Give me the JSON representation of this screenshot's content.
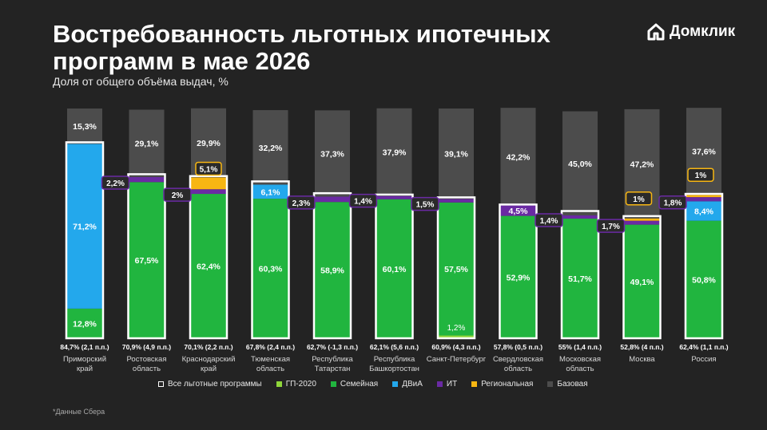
{
  "title": "Востребованность льготных ипотечных программ в мае 2026",
  "subtitle": "Доля от общего объёма выдач, %",
  "logo": {
    "text": "Домклик"
  },
  "footnote": "*Данные Сбера",
  "colors": {
    "gp2020": "#8fd63a",
    "family": "#21b53f",
    "dvia": "#23a8ec",
    "it": "#6a2aa3",
    "regional": "#f7b612",
    "base": "#4c4c4c",
    "outline": "#ffffff"
  },
  "chart_data": {
    "type": "bar",
    "stacked": true,
    "ylim": [
      0,
      100
    ],
    "categories": [
      "Приморский край",
      "Ростовская область",
      "Краснодарский край",
      "Тюменская область",
      "Республика Татарстан",
      "Республика Башкортостан",
      "Санкт-Петербург",
      "Свердловская область",
      "Московская область",
      "Москва",
      "Россия"
    ],
    "totals": [
      "84,7% (2,1 п.п.)",
      "70,9% (4,9 п.п.)",
      "70,1% (2,2 п.п.)",
      "67,8% (2,4 п.п.)",
      "62,7% (-1,3 п.п.)",
      "62,1% (5,6 п.п.)",
      "60,9% (4,3 п.п.)",
      "57,8% (0,5 п.п.)",
      "55% (1,4 п.п.)",
      "52,8% (4 п.п.)",
      "62,4% (1,1 п.п.)"
    ],
    "legend": [
      "Все льготные программы",
      "ГП-2020",
      "Семейная",
      "ДВиА",
      "ИТ",
      "Региональная",
      "Базовая"
    ],
    "series": [
      {
        "name": "ГП-2020",
        "key": "gp2020",
        "values": [
          0,
          0,
          0,
          0,
          0,
          0,
          1.2,
          0,
          0,
          0,
          0
        ],
        "labels": [
          "",
          "",
          "",
          "",
          "",
          "",
          "1,2%",
          "",
          "",
          "",
          ""
        ]
      },
      {
        "name": "Семейная",
        "key": "family",
        "values": [
          12.8,
          67.5,
          62.4,
          60.3,
          58.9,
          60.1,
          57.5,
          52.9,
          51.7,
          49.1,
          50.8
        ],
        "labels": [
          "12,8%",
          "67,5%",
          "62,4%",
          "60,3%",
          "58,9%",
          "60,1%",
          "57,5%",
          "52,9%",
          "51,7%",
          "49,1%",
          "50,8%"
        ]
      },
      {
        "name": "ДВиА",
        "key": "dvia",
        "values": [
          71.2,
          0,
          0,
          6.1,
          0,
          0,
          0,
          0,
          0,
          0,
          8.4
        ],
        "labels": [
          "71,2%",
          "",
          "",
          "6,1%",
          "",
          "",
          "",
          "",
          "",
          "",
          "8,4%"
        ]
      },
      {
        "name": "ИТ",
        "key": "it",
        "values": [
          0,
          2.2,
          2,
          0,
          2.3,
          1.4,
          1.5,
          4.5,
          1.4,
          1.7,
          1.8
        ],
        "labels": [
          "",
          "2,2%",
          "2%",
          "",
          "2,3%",
          "1,4%",
          "1,5%",
          "4,5%",
          "1,4%",
          "1,7%",
          "1,8%"
        ]
      },
      {
        "name": "Региональная",
        "key": "regional",
        "values": [
          0,
          0,
          5.1,
          0,
          0,
          0,
          0,
          0,
          0,
          1,
          1
        ],
        "labels": [
          "",
          "",
          "5,1%",
          "",
          "",
          "",
          "",
          "",
          "",
          "1%",
          "1%"
        ]
      },
      {
        "name": "Базовая",
        "key": "base",
        "values": [
          15.3,
          29.1,
          29.9,
          32.2,
          37.3,
          37.9,
          39.1,
          42.2,
          45,
          47.2,
          37.6
        ],
        "labels": [
          "15,3%",
          "29,1%",
          "29,9%",
          "32,2%",
          "37,3%",
          "37,9%",
          "39,1%",
          "42,2%",
          "45,0%",
          "47,2%",
          "37,6%"
        ]
      }
    ]
  }
}
